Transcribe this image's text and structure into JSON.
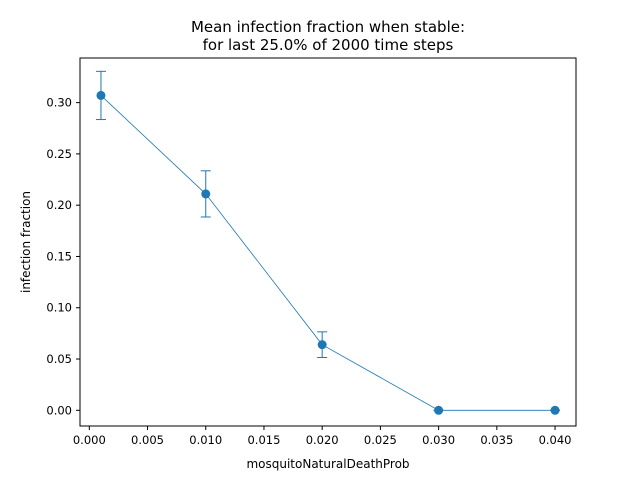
{
  "chart_data": {
    "type": "line",
    "title": "Mean infection fraction when stable:",
    "subtitle": "for last 25.0% of 2000 time steps",
    "xlabel": "mosquitoNaturalDeathProb",
    "ylabel": "infection fraction",
    "xlim": [
      -0.0008,
      0.0418
    ],
    "ylim": [
      -0.0153,
      0.3435
    ],
    "x_ticks": [
      0.0,
      0.005,
      0.01,
      0.015,
      0.02,
      0.025,
      0.03,
      0.035,
      0.04
    ],
    "x_tick_labels": [
      "0.000",
      "0.005",
      "0.010",
      "0.015",
      "0.020",
      "0.025",
      "0.030",
      "0.035",
      "0.040"
    ],
    "y_ticks": [
      0.0,
      0.05,
      0.1,
      0.15,
      0.2,
      0.25,
      0.3
    ],
    "y_tick_labels": [
      "0.00",
      "0.05",
      "0.10",
      "0.15",
      "0.20",
      "0.25",
      "0.30"
    ],
    "grid": false,
    "color": "#1f77b4",
    "series": [
      {
        "x": [
          0.001,
          0.01,
          0.02,
          0.03,
          0.04
        ],
        "y": [
          0.307,
          0.211,
          0.064,
          0.0,
          0.0
        ],
        "yerr": [
          0.0235,
          0.0225,
          0.0125,
          0.0,
          0.0
        ]
      }
    ]
  }
}
